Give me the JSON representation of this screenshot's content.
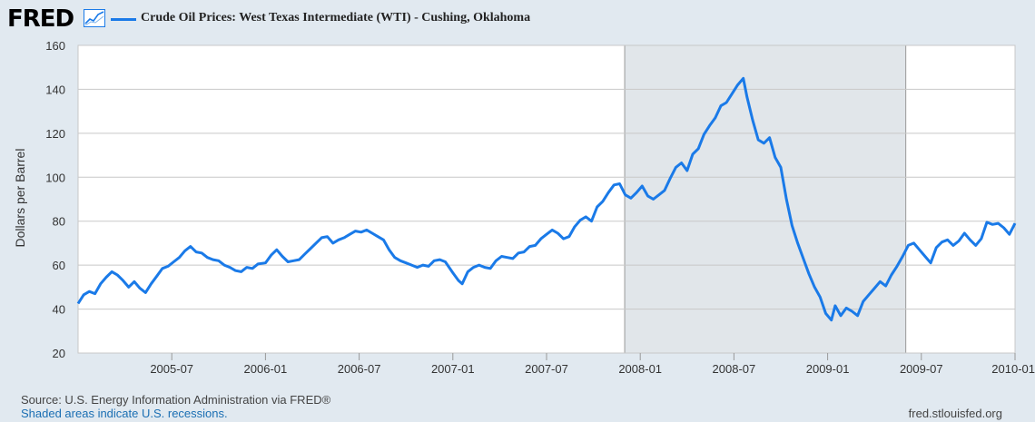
{
  "brand": {
    "logo_text": "FRED",
    "accent": "#1a7ae8"
  },
  "legend": {
    "label": "Crude Oil Prices: West Texas Intermediate (WTI) - Cushing, Oklahoma"
  },
  "footer": {
    "source": "Source: U.S. Energy Information Administration via FRED®",
    "recession_note": "Shaded areas indicate U.S. recessions.",
    "site": "fred.stlouisfed.org"
  },
  "chart_data": {
    "type": "line",
    "title": "Crude Oil Prices: West Texas Intermediate (WTI) - Cushing, Oklahoma",
    "ylabel": "Dollars per Barrel",
    "xlabel": "",
    "ylim": [
      20,
      160
    ],
    "xlim": [
      2005.0,
      2010.0
    ],
    "grid": true,
    "yticks": [
      20,
      40,
      60,
      80,
      100,
      120,
      140,
      160
    ],
    "xticks": [
      {
        "label": "2005-07",
        "x": 2005.5
      },
      {
        "label": "2006-01",
        "x": 2006.0
      },
      {
        "label": "2006-07",
        "x": 2006.5
      },
      {
        "label": "2007-01",
        "x": 2007.0
      },
      {
        "label": "2007-07",
        "x": 2007.5
      },
      {
        "label": "2008-01",
        "x": 2008.0
      },
      {
        "label": "2008-07",
        "x": 2008.5
      },
      {
        "label": "2009-01",
        "x": 2009.0
      },
      {
        "label": "2009-07",
        "x": 2009.5
      },
      {
        "label": "2010-01",
        "x": 2010.0
      }
    ],
    "recessions": [
      {
        "start": 2007.917,
        "end": 2009.417
      }
    ],
    "series": [
      {
        "name": "Crude Oil Prices: West Texas Intermediate (WTI) - Cushing, Oklahoma",
        "color": "#1a7ae8",
        "points": [
          [
            2005.0,
            42.5
          ],
          [
            2005.03,
            46.5
          ],
          [
            2005.06,
            48.0
          ],
          [
            2005.09,
            47.0
          ],
          [
            2005.12,
            51.5
          ],
          [
            2005.15,
            54.5
          ],
          [
            2005.18,
            57.0
          ],
          [
            2005.21,
            55.5
          ],
          [
            2005.24,
            53.0
          ],
          [
            2005.27,
            50.0
          ],
          [
            2005.3,
            52.5
          ],
          [
            2005.33,
            49.5
          ],
          [
            2005.36,
            47.5
          ],
          [
            2005.39,
            51.5
          ],
          [
            2005.42,
            55.0
          ],
          [
            2005.45,
            58.5
          ],
          [
            2005.48,
            59.5
          ],
          [
            2005.51,
            61.5
          ],
          [
            2005.54,
            63.5
          ],
          [
            2005.57,
            66.5
          ],
          [
            2005.6,
            68.5
          ],
          [
            2005.63,
            66.0
          ],
          [
            2005.66,
            65.5
          ],
          [
            2005.69,
            63.5
          ],
          [
            2005.72,
            62.5
          ],
          [
            2005.75,
            62.0
          ],
          [
            2005.78,
            60.0
          ],
          [
            2005.81,
            59.0
          ],
          [
            2005.84,
            57.5
          ],
          [
            2005.87,
            57.0
          ],
          [
            2005.9,
            59.0
          ],
          [
            2005.93,
            58.5
          ],
          [
            2005.96,
            60.5
          ],
          [
            2006.0,
            61.0
          ],
          [
            2006.03,
            64.5
          ],
          [
            2006.06,
            67.0
          ],
          [
            2006.09,
            64.0
          ],
          [
            2006.12,
            61.5
          ],
          [
            2006.15,
            62.0
          ],
          [
            2006.18,
            62.5
          ],
          [
            2006.21,
            65.0
          ],
          [
            2006.24,
            67.5
          ],
          [
            2006.27,
            70.0
          ],
          [
            2006.3,
            72.5
          ],
          [
            2006.33,
            73.0
          ],
          [
            2006.36,
            70.0
          ],
          [
            2006.39,
            71.5
          ],
          [
            2006.42,
            72.5
          ],
          [
            2006.45,
            74.0
          ],
          [
            2006.48,
            75.5
          ],
          [
            2006.51,
            75.0
          ],
          [
            2006.54,
            76.0
          ],
          [
            2006.57,
            74.5
          ],
          [
            2006.6,
            73.0
          ],
          [
            2006.63,
            71.5
          ],
          [
            2006.66,
            67.0
          ],
          [
            2006.69,
            63.5
          ],
          [
            2006.72,
            62.0
          ],
          [
            2006.75,
            61.0
          ],
          [
            2006.78,
            60.0
          ],
          [
            2006.81,
            59.0
          ],
          [
            2006.84,
            60.0
          ],
          [
            2006.87,
            59.5
          ],
          [
            2006.9,
            62.0
          ],
          [
            2006.93,
            62.5
          ],
          [
            2006.96,
            61.5
          ],
          [
            2007.0,
            56.5
          ],
          [
            2007.03,
            53.0
          ],
          [
            2007.05,
            51.5
          ],
          [
            2007.08,
            57.0
          ],
          [
            2007.11,
            59.0
          ],
          [
            2007.14,
            60.0
          ],
          [
            2007.17,
            59.0
          ],
          [
            2007.2,
            58.5
          ],
          [
            2007.23,
            62.0
          ],
          [
            2007.26,
            64.0
          ],
          [
            2007.29,
            63.5
          ],
          [
            2007.32,
            63.0
          ],
          [
            2007.35,
            65.5
          ],
          [
            2007.38,
            66.0
          ],
          [
            2007.41,
            68.5
          ],
          [
            2007.44,
            69.0
          ],
          [
            2007.47,
            72.0
          ],
          [
            2007.5,
            74.0
          ],
          [
            2007.53,
            76.0
          ],
          [
            2007.56,
            74.5
          ],
          [
            2007.59,
            72.0
          ],
          [
            2007.62,
            73.0
          ],
          [
            2007.65,
            77.5
          ],
          [
            2007.68,
            80.5
          ],
          [
            2007.71,
            82.0
          ],
          [
            2007.74,
            80.0
          ],
          [
            2007.77,
            86.5
          ],
          [
            2007.8,
            89.0
          ],
          [
            2007.83,
            93.0
          ],
          [
            2007.86,
            96.5
          ],
          [
            2007.89,
            97.0
          ],
          [
            2007.92,
            92.0
          ],
          [
            2007.95,
            90.5
          ],
          [
            2007.98,
            93.0
          ],
          [
            2008.01,
            96.0
          ],
          [
            2008.04,
            91.5
          ],
          [
            2008.07,
            90.0
          ],
          [
            2008.1,
            92.0
          ],
          [
            2008.13,
            94.0
          ],
          [
            2008.16,
            99.5
          ],
          [
            2008.19,
            104.5
          ],
          [
            2008.22,
            106.5
          ],
          [
            2008.25,
            103.0
          ],
          [
            2008.28,
            110.5
          ],
          [
            2008.31,
            113.0
          ],
          [
            2008.34,
            119.5
          ],
          [
            2008.37,
            123.5
          ],
          [
            2008.4,
            127.0
          ],
          [
            2008.43,
            132.5
          ],
          [
            2008.46,
            134.0
          ],
          [
            2008.49,
            138.0
          ],
          [
            2008.52,
            142.0
          ],
          [
            2008.55,
            145.0
          ],
          [
            2008.57,
            136.5
          ],
          [
            2008.6,
            126.0
          ],
          [
            2008.63,
            117.0
          ],
          [
            2008.66,
            115.5
          ],
          [
            2008.69,
            118.0
          ],
          [
            2008.72,
            109.0
          ],
          [
            2008.75,
            104.5
          ],
          [
            2008.78,
            90.0
          ],
          [
            2008.81,
            78.0
          ],
          [
            2008.84,
            70.0
          ],
          [
            2008.87,
            63.0
          ],
          [
            2008.9,
            56.0
          ],
          [
            2008.93,
            50.0
          ],
          [
            2008.96,
            45.5
          ],
          [
            2008.99,
            38.0
          ],
          [
            2009.02,
            35.0
          ],
          [
            2009.04,
            41.5
          ],
          [
            2009.07,
            37.0
          ],
          [
            2009.1,
            40.5
          ],
          [
            2009.13,
            39.0
          ],
          [
            2009.16,
            37.0
          ],
          [
            2009.19,
            43.5
          ],
          [
            2009.22,
            46.5
          ],
          [
            2009.25,
            49.5
          ],
          [
            2009.28,
            52.5
          ],
          [
            2009.31,
            50.5
          ],
          [
            2009.34,
            55.5
          ],
          [
            2009.37,
            59.5
          ],
          [
            2009.4,
            64.0
          ],
          [
            2009.43,
            69.0
          ],
          [
            2009.46,
            70.0
          ],
          [
            2009.49,
            67.0
          ],
          [
            2009.52,
            64.0
          ],
          [
            2009.55,
            61.0
          ],
          [
            2009.58,
            68.0
          ],
          [
            2009.61,
            70.5
          ],
          [
            2009.64,
            71.5
          ],
          [
            2009.67,
            69.0
          ],
          [
            2009.7,
            71.0
          ],
          [
            2009.73,
            74.5
          ],
          [
            2009.76,
            71.5
          ],
          [
            2009.79,
            69.0
          ],
          [
            2009.82,
            72.0
          ],
          [
            2009.85,
            79.5
          ],
          [
            2009.88,
            78.5
          ],
          [
            2009.91,
            79.0
          ],
          [
            2009.94,
            77.0
          ],
          [
            2009.97,
            74.0
          ],
          [
            2010.0,
            79.0
          ]
        ]
      }
    ]
  }
}
